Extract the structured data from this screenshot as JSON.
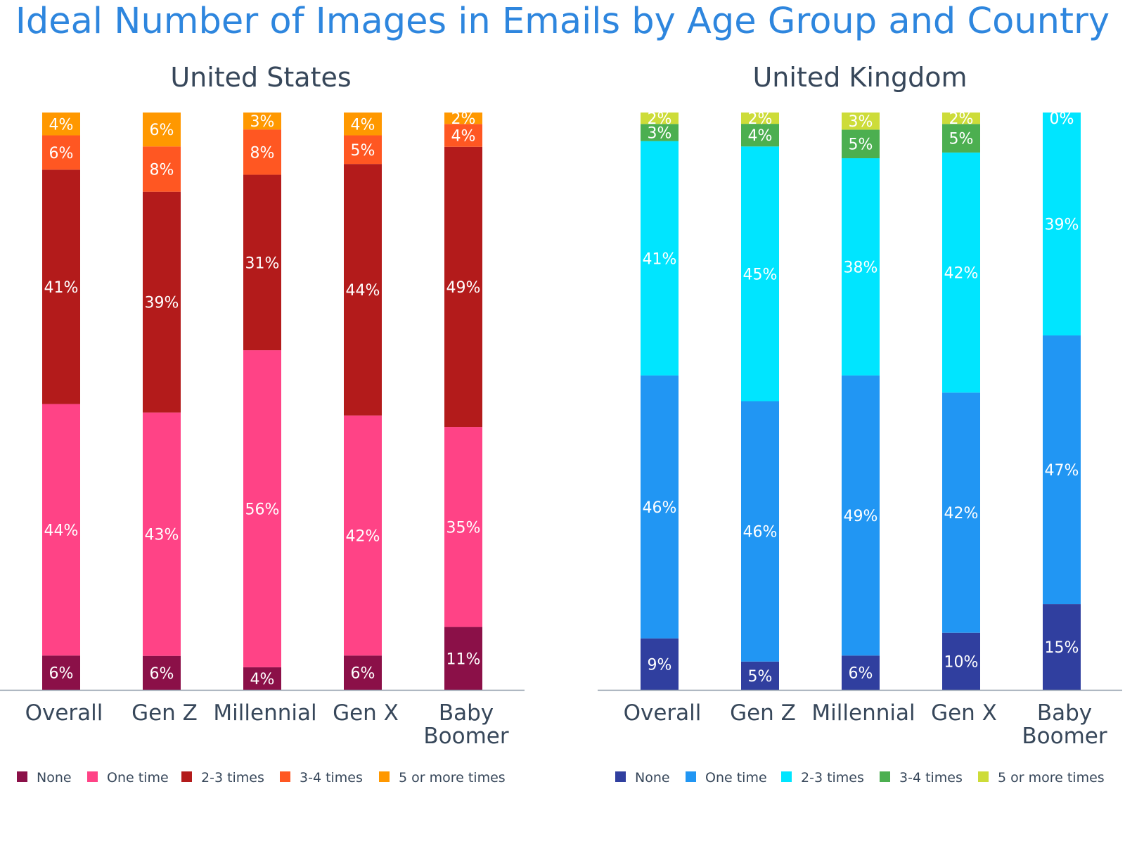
{
  "title": "Ideal Number of Images in Emails by Age Group and Country",
  "title_color": "#2E86DE",
  "chart_data": [
    {
      "type": "bar",
      "stacked": true,
      "title": "United States",
      "categories": [
        "Overall",
        "Gen Z",
        "Millennial",
        "Gen X",
        "Baby Boomer"
      ],
      "category_lines": [
        [
          "Overall"
        ],
        [
          "Gen Z"
        ],
        [
          "Millennial"
        ],
        [
          "Gen X"
        ],
        [
          "Baby",
          "Boomer"
        ]
      ],
      "ylim": [
        0,
        100
      ],
      "grid": false,
      "legend_position": "bottom",
      "series": [
        {
          "name": "None",
          "color": "#8B1048",
          "values": [
            6,
            6,
            4,
            6,
            11
          ]
        },
        {
          "name": "One time",
          "color": "#FF4386",
          "values": [
            44,
            43,
            56,
            42,
            35
          ]
        },
        {
          "name": "2-3 times",
          "color": "#B31B1B",
          "values": [
            41,
            39,
            31,
            44,
            49
          ]
        },
        {
          "name": "3-4 times",
          "color": "#FF5722",
          "values": [
            6,
            8,
            8,
            5,
            4
          ]
        },
        {
          "name": "5 or more times",
          "color": "#FF9800",
          "values": [
            4,
            6,
            3,
            4,
            2
          ]
        }
      ]
    },
    {
      "type": "bar",
      "stacked": true,
      "title": "United Kingdom",
      "categories": [
        "Overall",
        "Gen Z",
        "Millennial",
        "Gen X",
        "Baby Boomer"
      ],
      "category_lines": [
        [
          "Overall"
        ],
        [
          "Gen Z"
        ],
        [
          "Millennial"
        ],
        [
          "Gen X"
        ],
        [
          "Baby",
          "Boomer"
        ]
      ],
      "ylim": [
        0,
        100
      ],
      "grid": false,
      "legend_position": "bottom",
      "series": [
        {
          "name": "None",
          "color": "#303F9F",
          "values": [
            9,
            5,
            6,
            10,
            15
          ]
        },
        {
          "name": "One time",
          "color": "#2196F3",
          "values": [
            46,
            46,
            49,
            42,
            47
          ]
        },
        {
          "name": "2-3 times",
          "color": "#00E5FF",
          "values": [
            41,
            45,
            38,
            42,
            39
          ]
        },
        {
          "name": "3-4 times",
          "color": "#4CAF50",
          "values": [
            3,
            4,
            5,
            5,
            0
          ]
        },
        {
          "name": "5 or more times",
          "color": "#CDDC39",
          "values": [
            2,
            2,
            3,
            2,
            0
          ]
        }
      ]
    }
  ]
}
